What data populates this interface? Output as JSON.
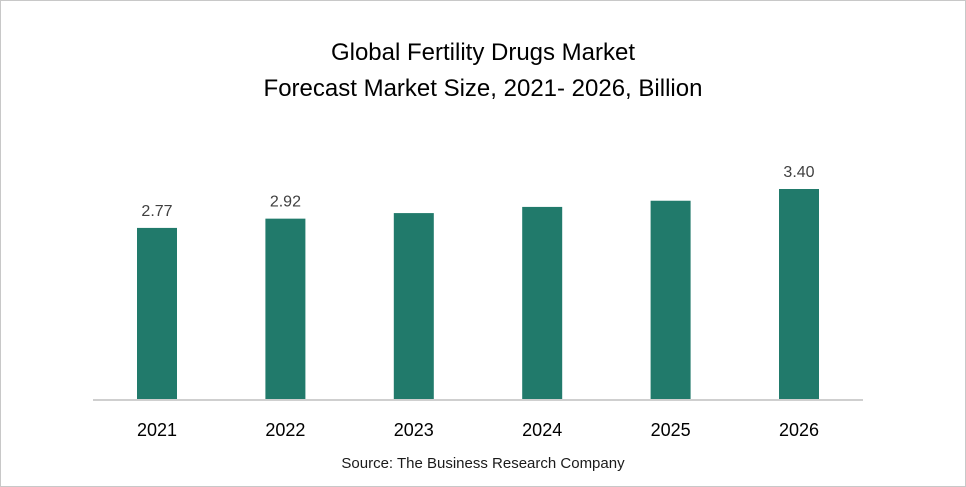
{
  "chart_data": {
    "type": "bar",
    "title": "Global Fertility Drugs Market",
    "subtitle": "Forecast Market Size, 2021- 2026, Billion",
    "categories": [
      "2021",
      "2022",
      "2023",
      "2024",
      "2025",
      "2026"
    ],
    "values": [
      2.77,
      2.92,
      3.01,
      3.11,
      3.21,
      3.4
    ],
    "data_labels": [
      "2.77",
      "2.92",
      "",
      "",
      "",
      "3.40"
    ],
    "ylim": [
      0,
      3.4
    ],
    "grid": false,
    "legend": "none",
    "bar_color": "#217a6b"
  },
  "source": "Source: The Business Research Company"
}
